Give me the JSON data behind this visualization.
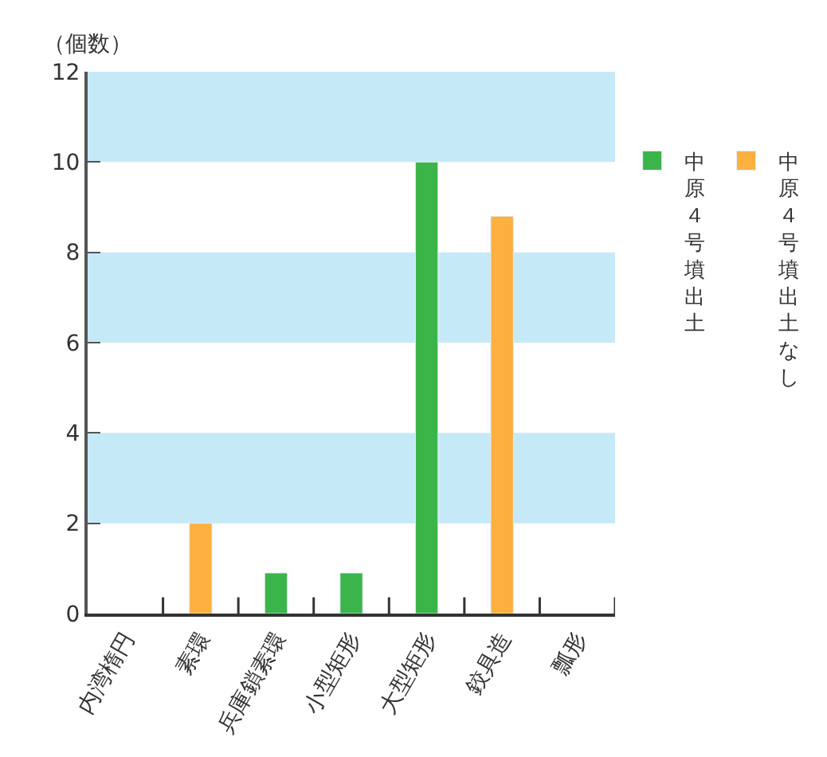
{
  "chart_data": {
    "type": "bar",
    "ylabel": "（個数）",
    "categories": [
      "内湾楕円",
      "素環",
      "兵庫鎖素環",
      "小型矩形",
      "大型矩形",
      "鉸具造",
      "瓢形"
    ],
    "series": [
      {
        "name": "中原４号墳出土",
        "color": "#3bb54a",
        "values": [
          null,
          null,
          0.9,
          0.9,
          10,
          null,
          null
        ]
      },
      {
        "name": "中原４号墳出土なし",
        "color": "#fbb040",
        "values": [
          null,
          2,
          null,
          null,
          null,
          8.8,
          null
        ]
      }
    ],
    "ylim": [
      0,
      12
    ],
    "yticks": [
      0,
      2,
      4,
      6,
      8,
      10,
      12
    ],
    "bands": [
      {
        "axis": "y",
        "from": 2,
        "to": 4,
        "color": "#c6e9f7"
      },
      {
        "axis": "y",
        "from": 6,
        "to": 8,
        "color": "#c6e9f7"
      },
      {
        "axis": "y",
        "from": 10,
        "to": 12,
        "color": "#c6e9f7"
      }
    ],
    "grid": false,
    "legend": "right"
  }
}
